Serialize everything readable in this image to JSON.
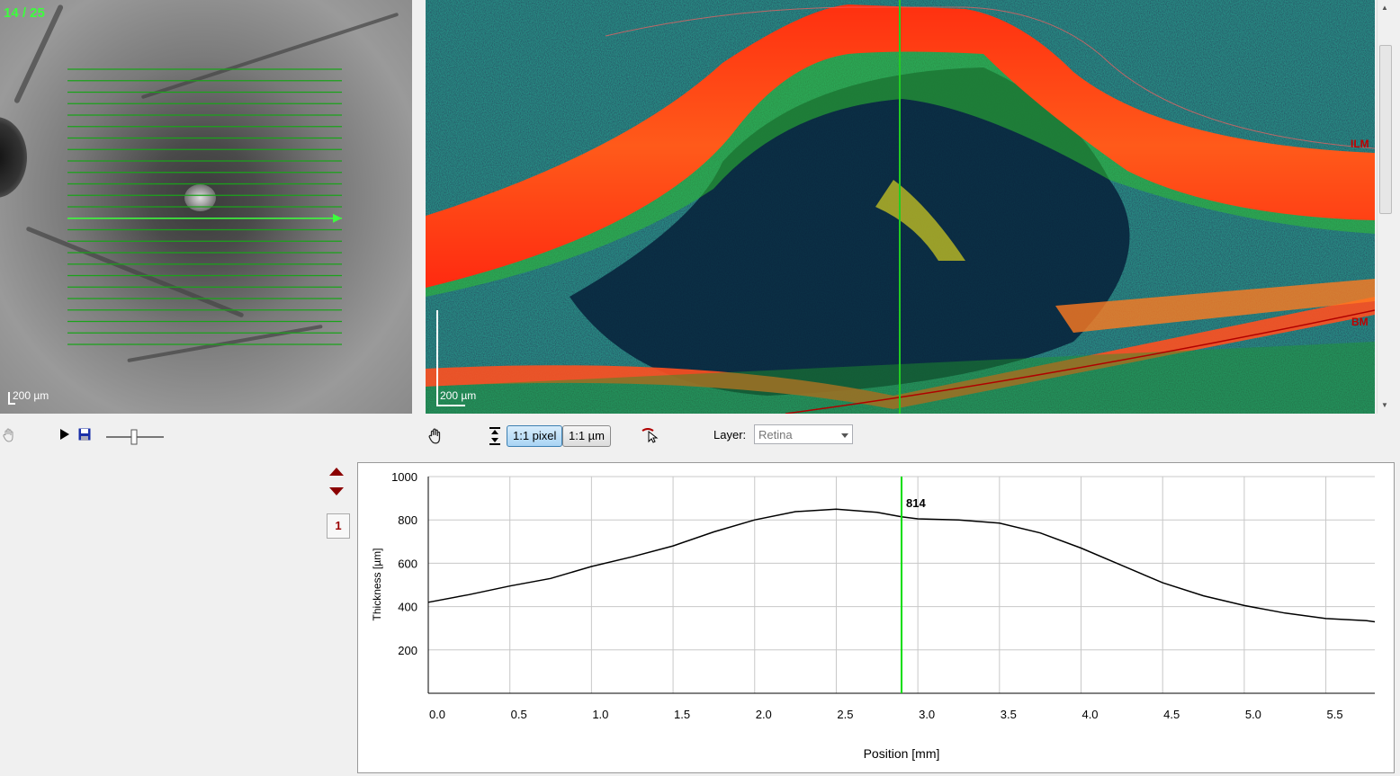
{
  "fundus": {
    "slice_counter": "14 / 25",
    "scale_label": "200 µm",
    "scan_line_count": 25,
    "selected_scan_index": 14,
    "scan_line_color": "#1aa31a",
    "selected_line_color": "#3cff3c"
  },
  "oct": {
    "scale_label": "200 µm",
    "ilm_label": "ILM",
    "bm_label": "BM"
  },
  "left_toolbar": {
    "pan_icon": "hand-icon",
    "play_icon": "play-icon",
    "save_icon": "save-icon",
    "slider_icon": "slider-icon"
  },
  "oct_toolbar": {
    "pan_icon": "hand-icon",
    "fit_height_icon": "fit-height-icon",
    "pixel_button": "1:1 pixel",
    "um_button": "1:1 µm",
    "pointer_icon": "cursor-icon",
    "layer_label": "Layer:",
    "layer_value": "Retina"
  },
  "series_nav": {
    "up_icon": "triangle-up-icon",
    "down_icon": "triangle-down-icon",
    "series_number": "1"
  },
  "colors": {
    "accent_green": "#00dd00",
    "marker_red": "#8b0000"
  },
  "chart_data": {
    "type": "line",
    "xlabel": "Position [mm]",
    "ylabel": "Thickness [µm]",
    "xlim": [
      0,
      5.8
    ],
    "ylim": [
      0,
      1000
    ],
    "x_ticks": [
      "0.0",
      "0.5",
      "1.0",
      "1.5",
      "2.0",
      "2.5",
      "3.0",
      "3.5",
      "4.0",
      "4.5",
      "5.0",
      "5.5"
    ],
    "y_ticks": [
      "200",
      "400",
      "600",
      "800",
      "1000"
    ],
    "grid": true,
    "cursor": {
      "x": 2.9,
      "label": "814"
    },
    "series": [
      {
        "name": "Retina thickness",
        "x": [
          0.0,
          0.25,
          0.5,
          0.75,
          1.0,
          1.25,
          1.5,
          1.75,
          2.0,
          2.25,
          2.5,
          2.75,
          2.9,
          3.0,
          3.25,
          3.5,
          3.75,
          4.0,
          4.25,
          4.5,
          4.75,
          5.0,
          5.25,
          5.5,
          5.75,
          5.8
        ],
        "values": [
          420,
          455,
          495,
          530,
          585,
          630,
          680,
          745,
          800,
          838,
          850,
          835,
          814,
          805,
          800,
          785,
          740,
          670,
          590,
          510,
          450,
          405,
          370,
          345,
          335,
          330
        ]
      }
    ]
  }
}
